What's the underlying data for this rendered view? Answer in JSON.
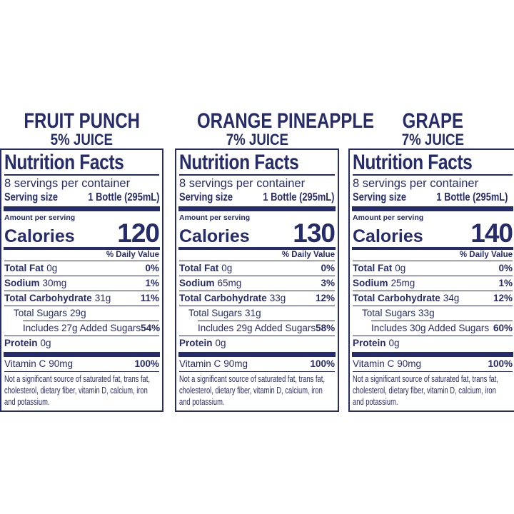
{
  "colors": {
    "ink": "#262c6a",
    "background": "#ffffff"
  },
  "panels": [
    {
      "flavor": "FRUIT PUNCH",
      "juice": "5% JUICE",
      "nf_title": "Nutrition Facts",
      "servings": "8 servings per container",
      "serving_size_label": "Serving size",
      "serving_size_value": "1 Bottle (295mL)",
      "amount_label": "Amount per serving",
      "calories_label": "Calories",
      "calories_value": "120",
      "dv_header": "% Daily Value",
      "fat": {
        "name": "Total Fat",
        "amount": "0g",
        "dv": "0%"
      },
      "sodium": {
        "name": "Sodium",
        "amount": "30mg",
        "dv": "1%"
      },
      "carb": {
        "name": "Total Carbohydrate",
        "amount": "31g",
        "dv": "11%"
      },
      "sugars": {
        "name": "Total Sugars",
        "amount": "29g"
      },
      "added": {
        "name": "Includes 27g Added Sugars",
        "dv": "54%"
      },
      "protein": {
        "name": "Protein",
        "amount": "0g"
      },
      "vitc": {
        "name": "Vitamin C",
        "amount": "90mg",
        "dv": "100%"
      },
      "footnote": "Not a significant source of saturated fat, trans fat, cholesterol, dietary fiber, vitamin D, calcium, iron and potassium."
    },
    {
      "flavor": "ORANGE PINEAPPLE",
      "juice": "7% JUICE",
      "nf_title": "Nutrition Facts",
      "servings": "8 servings per container",
      "serving_size_label": "Serving size",
      "serving_size_value": "1 Bottle (295mL)",
      "amount_label": "Amount per serving",
      "calories_label": "Calories",
      "calories_value": "130",
      "dv_header": "% Daily Value",
      "fat": {
        "name": "Total Fat",
        "amount": "0g",
        "dv": "0%"
      },
      "sodium": {
        "name": "Sodium",
        "amount": "65mg",
        "dv": "3%"
      },
      "carb": {
        "name": "Total Carbohydrate",
        "amount": "33g",
        "dv": "12%"
      },
      "sugars": {
        "name": "Total Sugars",
        "amount": "31g"
      },
      "added": {
        "name": "Includes 29g Added Sugars",
        "dv": "58%"
      },
      "protein": {
        "name": "Protein",
        "amount": "0g"
      },
      "vitc": {
        "name": "Vitamin C",
        "amount": "90mg",
        "dv": "100%"
      },
      "footnote": "Not a significant source of saturated fat, trans fat, cholesterol, dietary fiber, vitamin D, calcium, iron and potassium."
    },
    {
      "flavor": "GRAPE",
      "juice": "7% JUICE",
      "nf_title": "Nutrition Facts",
      "servings": "8 servings per container",
      "serving_size_label": "Serving size",
      "serving_size_value": "1 Bottle (295mL)",
      "amount_label": "Amount per serving",
      "calories_label": "Calories",
      "calories_value": "140",
      "dv_header": "% Daily Value",
      "fat": {
        "name": "Total Fat",
        "amount": "0g",
        "dv": "0%"
      },
      "sodium": {
        "name": "Sodium",
        "amount": "25mg",
        "dv": "1%"
      },
      "carb": {
        "name": "Total Carbohydrate",
        "amount": "34g",
        "dv": "12%"
      },
      "sugars": {
        "name": "Total Sugars",
        "amount": "33g"
      },
      "added": {
        "name": "Includes 30g Added Sugars",
        "dv": "60%"
      },
      "protein": {
        "name": "Protein",
        "amount": "0g"
      },
      "vitc": {
        "name": "Vitamin C",
        "amount": "90mg",
        "dv": "100%"
      },
      "footnote": "Not a significant source of saturated fat, trans fat, cholesterol, dietary fiber, vitamin D, calcium, iron and potassium."
    }
  ]
}
